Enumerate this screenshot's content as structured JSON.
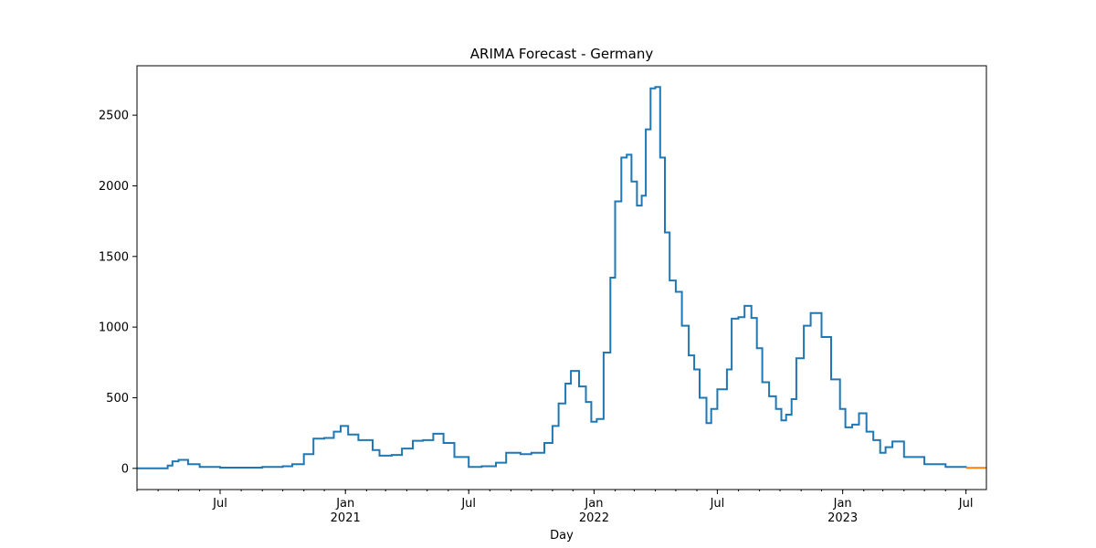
{
  "chart_data": {
    "type": "line",
    "title": "ARIMA Forecast - Germany",
    "xlabel": "Day",
    "ylabel": "",
    "xlim": [
      "2020-03-01",
      "2023-07-31"
    ],
    "ylim": [
      -150,
      2850
    ],
    "grid": false,
    "x_major_ticks": [
      {
        "date": "2020-07-01",
        "label": "Jul",
        "sublabel": ""
      },
      {
        "date": "2021-01-01",
        "label": "Jan",
        "sublabel": "2021"
      },
      {
        "date": "2021-07-01",
        "label": "Jul",
        "sublabel": ""
      },
      {
        "date": "2022-01-01",
        "label": "Jan",
        "sublabel": "2022"
      },
      {
        "date": "2022-07-01",
        "label": "Jul",
        "sublabel": ""
      },
      {
        "date": "2023-01-01",
        "label": "Jan",
        "sublabel": "2023"
      },
      {
        "date": "2023-07-01",
        "label": "Jul",
        "sublabel": ""
      }
    ],
    "y_ticks": [
      0,
      500,
      1000,
      1500,
      2000,
      2500
    ],
    "series": [
      {
        "color": "#1f77b4",
        "x": [
          "2020-03-01",
          "2020-04-01",
          "2020-04-15",
          "2020-04-22",
          "2020-05-01",
          "2020-05-15",
          "2020-06-01",
          "2020-07-01",
          "2020-08-01",
          "2020-09-01",
          "2020-10-01",
          "2020-10-15",
          "2020-11-01",
          "2020-11-15",
          "2020-12-01",
          "2020-12-15",
          "2020-12-25",
          "2021-01-05",
          "2021-01-20",
          "2021-02-10",
          "2021-02-20",
          "2021-03-10",
          "2021-03-25",
          "2021-04-10",
          "2021-04-25",
          "2021-05-10",
          "2021-05-25",
          "2021-06-10",
          "2021-07-01",
          "2021-07-20",
          "2021-08-10",
          "2021-08-25",
          "2021-09-15",
          "2021-10-01",
          "2021-10-20",
          "2021-11-01",
          "2021-11-10",
          "2021-11-20",
          "2021-11-28",
          "2021-12-10",
          "2021-12-20",
          "2021-12-28",
          "2022-01-05",
          "2022-01-15",
          "2022-01-25",
          "2022-02-01",
          "2022-02-10",
          "2022-02-18",
          "2022-02-25",
          "2022-03-05",
          "2022-03-12",
          "2022-03-18",
          "2022-03-25",
          "2022-04-01",
          "2022-04-08",
          "2022-04-15",
          "2022-04-22",
          "2022-05-01",
          "2022-05-10",
          "2022-05-20",
          "2022-05-28",
          "2022-06-05",
          "2022-06-15",
          "2022-06-22",
          "2022-07-01",
          "2022-07-15",
          "2022-07-22",
          "2022-08-01",
          "2022-08-10",
          "2022-08-20",
          "2022-08-28",
          "2022-09-05",
          "2022-09-15",
          "2022-09-25",
          "2022-10-03",
          "2022-10-10",
          "2022-10-18",
          "2022-10-25",
          "2022-11-05",
          "2022-11-15",
          "2022-12-01",
          "2022-12-15",
          "2022-12-28",
          "2023-01-05",
          "2023-01-15",
          "2023-01-25",
          "2023-02-05",
          "2023-02-15",
          "2023-02-25",
          "2023-03-05",
          "2023-03-15",
          "2023-04-01",
          "2023-05-01",
          "2023-06-01",
          "2023-07-01"
        ],
        "y": [
          0,
          0,
          20,
          50,
          60,
          30,
          10,
          5,
          5,
          10,
          15,
          30,
          100,
          210,
          215,
          260,
          300,
          240,
          200,
          130,
          90,
          95,
          140,
          195,
          200,
          245,
          180,
          80,
          10,
          15,
          40,
          110,
          100,
          110,
          180,
          300,
          460,
          600,
          690,
          580,
          470,
          330,
          350,
          820,
          1350,
          1890,
          2200,
          2220,
          2030,
          1860,
          1930,
          2400,
          2690,
          2700,
          2200,
          1670,
          1330,
          1250,
          1010,
          800,
          700,
          500,
          320,
          420,
          560,
          700,
          1060,
          1070,
          1150,
          1065,
          850,
          610,
          510,
          420,
          340,
          380,
          490,
          780,
          1010,
          1100,
          930,
          630,
          420,
          290,
          310,
          390,
          260,
          200,
          110,
          150,
          190,
          80,
          30,
          10,
          5
        ]
      },
      {
        "color": "#ff7f0e",
        "x": [
          "2023-07-01",
          "2023-07-31"
        ],
        "y": [
          3,
          3
        ]
      }
    ]
  }
}
